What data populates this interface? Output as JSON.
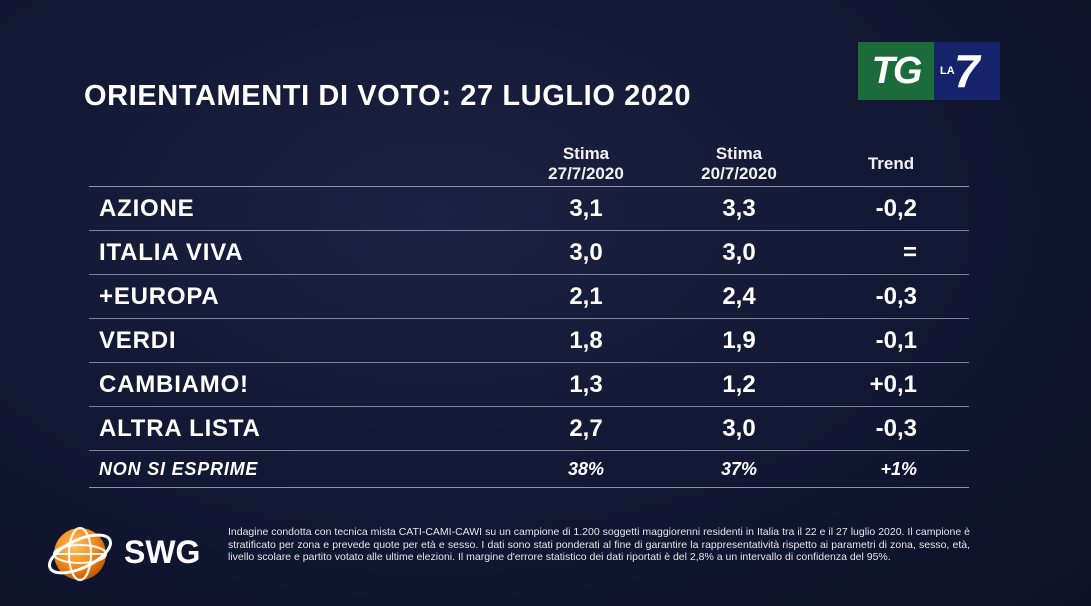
{
  "title": "ORIENTAMENTI DI VOTO: 27 LUGLIO 2020",
  "logo": {
    "tg": "TG",
    "la": "LA",
    "seven": "7"
  },
  "table": {
    "headers": {
      "col1_line1": "Stima",
      "col1_line2": "27/7/2020",
      "col2_line1": "Stima",
      "col2_line2": "20/7/2020",
      "trend": "Trend"
    },
    "rows": [
      {
        "name": "AZIONE",
        "v1": "3,1",
        "v2": "3,3",
        "trend": "-0,2"
      },
      {
        "name": "ITALIA VIVA",
        "v1": "3,0",
        "v2": "3,0",
        "trend": "="
      },
      {
        "name": "+EUROPA",
        "v1": "2,1",
        "v2": "2,4",
        "trend": "-0,3"
      },
      {
        "name": "VERDI",
        "v1": "1,8",
        "v2": "1,9",
        "trend": "-0,1"
      },
      {
        "name": "CAMBIAMO!",
        "v1": "1,3",
        "v2": "1,2",
        "trend": "+0,1"
      },
      {
        "name": "ALTRA LISTA",
        "v1": "2,7",
        "v2": "3,0",
        "trend": "-0,3"
      }
    ],
    "footer_row": {
      "name": "NON SI ESPRIME",
      "v1": "38%",
      "v2": "37%",
      "trend": "+1%"
    }
  },
  "swg": {
    "name": "SWG"
  },
  "note": "Indagine condotta con tecnica mista CATI-CAMI-CAWI su un campione di 1.200 soggetti maggiorenni residenti in Italia tra il 22 e il 27 luglio 2020. Il campione è stratificato per zona e prevede quote per età e sesso. I dati sono stati ponderati al fine di garantire la rappresentatività rispetto ai parametri di zona, sesso, età, livello scolare e partito votato alle ultime elezioni. Il margine d'errore statistico dei dati riportati è del 2,8% a un intervallo di confidenza del 95%.",
  "colors": {
    "background": "#121733",
    "tg_green": "#1c6b3b",
    "la7_blue": "#15236b",
    "swg_orange": "#f08c1e"
  }
}
